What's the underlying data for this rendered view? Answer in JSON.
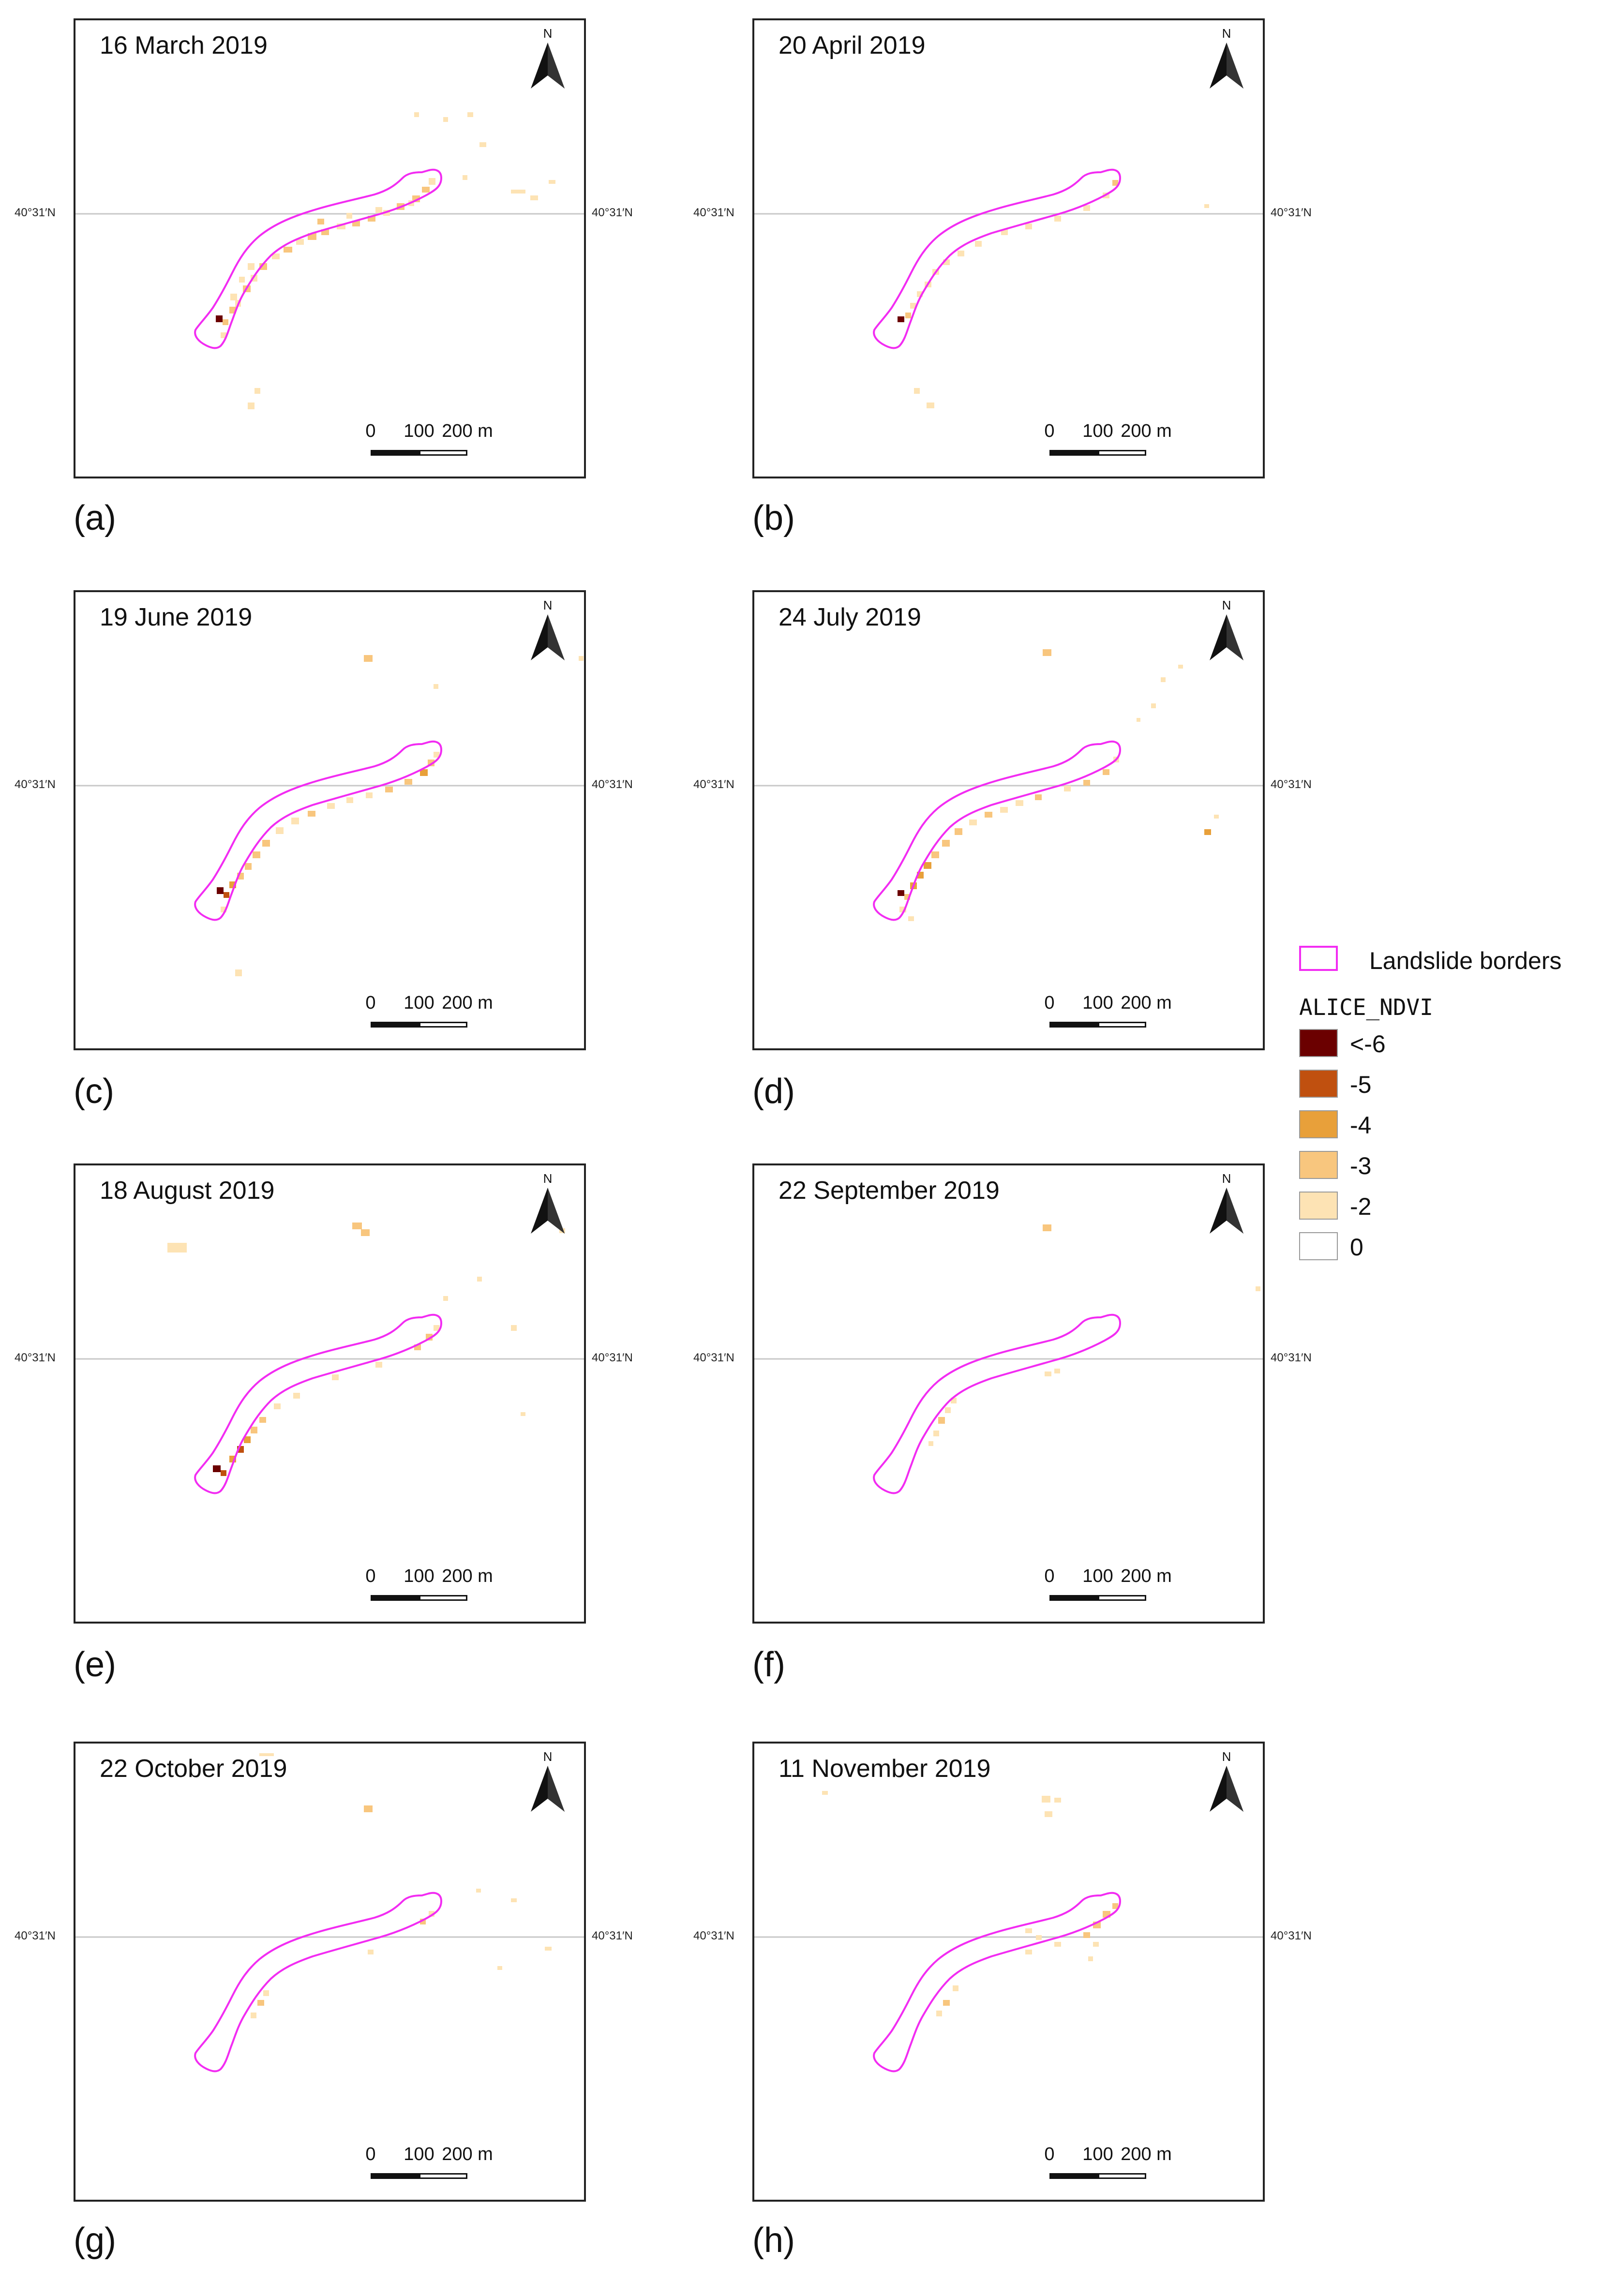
{
  "colors": {
    "border": "#f22cf2",
    "c6": "#6b0000",
    "c5": "#c0500f",
    "c4": "#e8a03a",
    "c3": "#f8c67e",
    "c2": "#fde3b4",
    "c0": "#ffffff"
  },
  "common": {
    "north_label": "N",
    "lat_label": "40°31′N",
    "scale": {
      "l0": "0",
      "l100": "100",
      "l200": "200 m"
    }
  },
  "panels": [
    {
      "id": "a",
      "date": "16 March 2019",
      "letter": "(a)"
    },
    {
      "id": "b",
      "date": "20 April 2019",
      "letter": "(b)"
    },
    {
      "id": "c",
      "date": "19 June 2019",
      "letter": "(c)"
    },
    {
      "id": "d",
      "date": "24 July 2019",
      "letter": "(d)"
    },
    {
      "id": "e",
      "date": "18 August 2019",
      "letter": "(e)"
    },
    {
      "id": "f",
      "date": "22 September 2019",
      "letter": "(f)"
    },
    {
      "id": "g",
      "date": "22 October 2019",
      "letter": "(g)"
    },
    {
      "id": "h",
      "date": "11 November 2019",
      "letter": "(h)"
    }
  ],
  "legend": {
    "borders_label": "Landslide borders",
    "title": "ALICE_NDVI",
    "items": [
      {
        "label": "<-6",
        "color": "#6b0000"
      },
      {
        "label": "-5",
        "color": "#c0500f"
      },
      {
        "label": "-4",
        "color": "#e8a03a"
      },
      {
        "label": "-3",
        "color": "#f8c67e"
      },
      {
        "label": "-2",
        "color": "#fde3b4"
      },
      {
        "label": "0",
        "color": "#ffffff"
      }
    ]
  }
}
